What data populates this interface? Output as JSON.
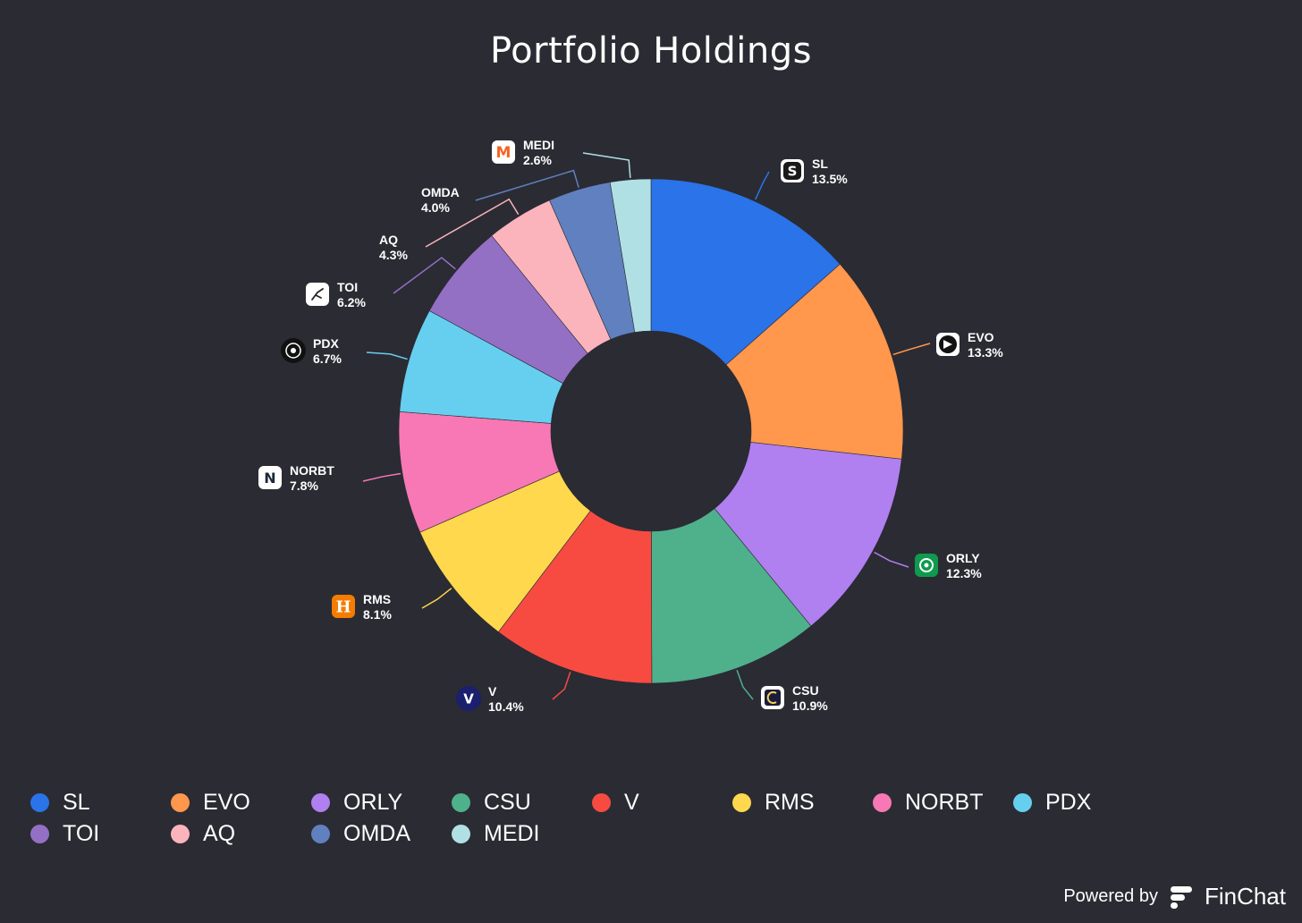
{
  "chart_data": {
    "type": "pie",
    "title": "Portfolio Holdings",
    "donut": true,
    "categories": [
      "SL",
      "EVO",
      "ORLY",
      "CSU",
      "V",
      "RMS",
      "NORBT",
      "PDX",
      "TOI",
      "AQ",
      "OMDA",
      "MEDI"
    ],
    "values": [
      13.5,
      13.3,
      12.3,
      10.9,
      10.4,
      8.1,
      7.8,
      6.7,
      6.2,
      4.3,
      4.0,
      2.6
    ],
    "labels": [
      "13.5%",
      "13.3%",
      "12.3%",
      "10.9%",
      "10.4%",
      "8.1%",
      "7.8%",
      "6.7%",
      "6.2%",
      "4.3%",
      "4.0%",
      "2.6%"
    ],
    "colors": [
      "#2a73e8",
      "#ff974d",
      "#b07ff0",
      "#4fb08c",
      "#f74b42",
      "#ffd84d",
      "#f778b4",
      "#66cff0",
      "#9370c4",
      "#fbb4bc",
      "#6080c0",
      "#b0e0e4"
    ],
    "icons": [
      "sl-logo-icon",
      "evo-logo-icon",
      "orly-logo-icon",
      "csu-logo-icon",
      "v-logo-icon",
      "rms-logo-icon",
      "norbt-logo-icon",
      "pdx-logo-icon",
      "toi-logo-icon",
      "",
      "",
      "medi-logo-icon"
    ],
    "legend_position": "bottom-left"
  },
  "footer": {
    "powered_by": "Powered by",
    "brand": "FinChat"
  }
}
